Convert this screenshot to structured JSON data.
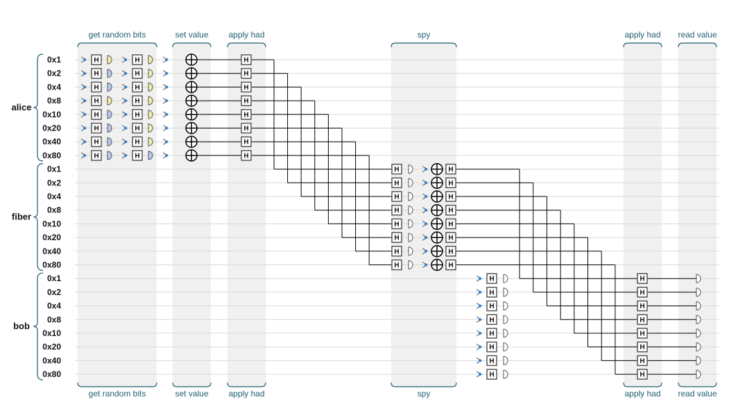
{
  "groups": [
    {
      "name": "alice",
      "qubits": [
        "0x1",
        "0x2",
        "0x4",
        "0x8",
        "0x10",
        "0x20",
        "0x40",
        "0x80"
      ]
    },
    {
      "name": "fiber",
      "qubits": [
        "0x1",
        "0x2",
        "0x4",
        "0x8",
        "0x10",
        "0x20",
        "0x40",
        "0x80"
      ]
    },
    {
      "name": "bob",
      "qubits": [
        "0x1",
        "0x2",
        "0x4",
        "0x8",
        "0x10",
        "0x20",
        "0x40",
        "0x80"
      ]
    }
  ],
  "sections": [
    {
      "id": "get-random-bits",
      "label": "get random bits"
    },
    {
      "id": "set-value",
      "label": "set value"
    },
    {
      "id": "apply-had-1",
      "label": "apply had"
    },
    {
      "id": "spy",
      "label": "spy"
    },
    {
      "id": "apply-had-2",
      "label": "apply had"
    },
    {
      "id": "read-value",
      "label": "read value"
    }
  ],
  "gates": {
    "hadamard": "H"
  },
  "colors": {
    "section_band": "#f0f0f0",
    "bracket": "#1f5f70",
    "wire": "#d9d9d9",
    "line": "#000000",
    "gate_stroke": "#555555",
    "init_dot": "#2f7fd0",
    "read_bit_yellow": "#f2efa8",
    "read_bit_blue": "#b7c9ef"
  },
  "random_bit_colors_row_pattern": [
    "yellow",
    "blue",
    "blue",
    "yellow",
    "blue",
    "blue",
    "blue",
    "blue"
  ],
  "random_bit_colors_row_pattern_2": [
    "yellow",
    "yellow",
    "yellow",
    "yellow",
    "yellow",
    "yellow",
    "yellow",
    "blue"
  ]
}
